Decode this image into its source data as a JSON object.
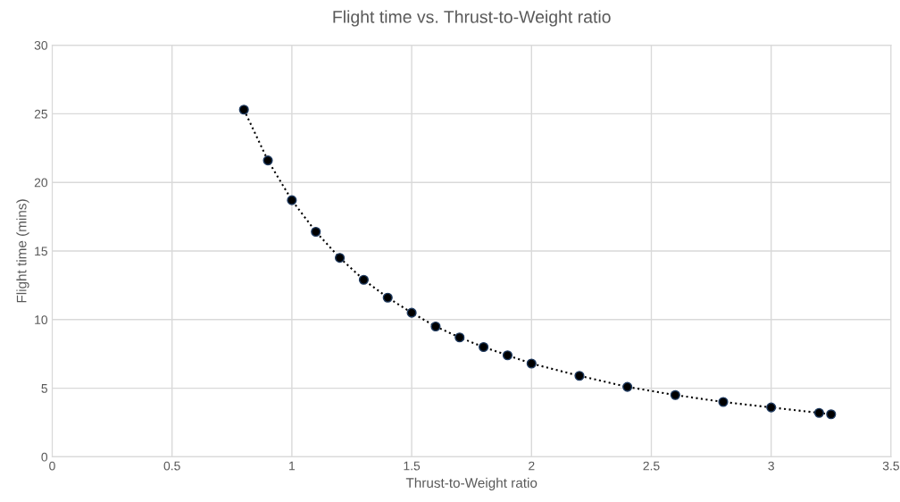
{
  "chart_data": {
    "type": "line",
    "title": "Flight time vs. Thrust-to-Weight ratio",
    "xlabel": "Thrust-to-Weight ratio",
    "ylabel": "Flight time (mins)",
    "x": [
      0.8,
      0.9,
      1.0,
      1.1,
      1.2,
      1.3,
      1.4,
      1.5,
      1.6,
      1.7,
      1.8,
      1.9,
      2.0,
      2.2,
      2.4,
      2.6,
      2.8,
      3.0,
      3.2,
      3.25
    ],
    "series": [
      {
        "color": "#000000",
        "values": [
          25.3,
          21.6,
          18.7,
          16.4,
          14.5,
          12.9,
          11.6,
          10.5,
          9.5,
          8.7,
          8.0,
          7.4,
          6.8,
          5.9,
          5.1,
          4.5,
          4.0,
          3.6,
          3.2,
          3.1
        ]
      }
    ],
    "xlim": [
      0,
      3.5
    ],
    "xticks": [
      0,
      0.5,
      1,
      1.5,
      2,
      2.5,
      3,
      3.5
    ],
    "ylim": [
      0,
      30
    ],
    "yticks": [
      0,
      5,
      10,
      15,
      20,
      25,
      30
    ],
    "grid": true,
    "marker": "circle",
    "line_style": "dotted",
    "legend": false
  }
}
